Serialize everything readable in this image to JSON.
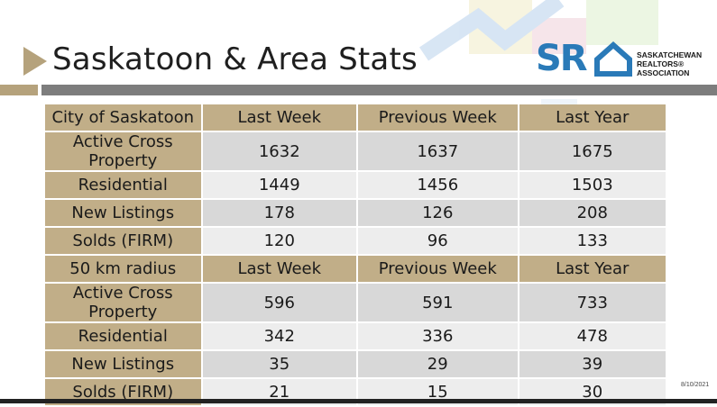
{
  "slide": {
    "title": "Saskatoon & Area Stats",
    "date": "8/10/2021"
  },
  "logo": {
    "letters": "SR",
    "line1": "SASKATCHEWAN",
    "line2": "REALTORS®",
    "line3": "ASSOCIATION"
  },
  "colors": {
    "tan": "#c1ae88",
    "row_dark": "#d8d8d8",
    "row_light": "#ededed",
    "band_gray": "#7d7d7d",
    "logo_blue": "#2a7ab8"
  },
  "table": {
    "section1": {
      "header": [
        "City of Saskatoon",
        "Last Week",
        "Previous Week",
        "Last Year"
      ],
      "rows": [
        {
          "label": "Active Cross Property",
          "values": [
            "1632",
            "1637",
            "1675"
          ]
        },
        {
          "label": "Residential",
          "values": [
            "1449",
            "1456",
            "1503"
          ]
        },
        {
          "label": "New Listings",
          "values": [
            "178",
            "126",
            "208"
          ]
        },
        {
          "label": "Solds (FIRM)",
          "values": [
            "120",
            "96",
            "133"
          ]
        }
      ]
    },
    "section2": {
      "header": [
        "50 km radius",
        "Last Week",
        "Previous Week",
        "Last Year"
      ],
      "rows": [
        {
          "label": "Active Cross Property",
          "values": [
            "596",
            "591",
            "733"
          ]
        },
        {
          "label": "Residential",
          "values": [
            "342",
            "336",
            "478"
          ]
        },
        {
          "label": "New Listings",
          "values": [
            "35",
            "29",
            "39"
          ]
        },
        {
          "label": "Solds (FIRM)",
          "values": [
            "21",
            "15",
            "30"
          ]
        }
      ]
    }
  }
}
